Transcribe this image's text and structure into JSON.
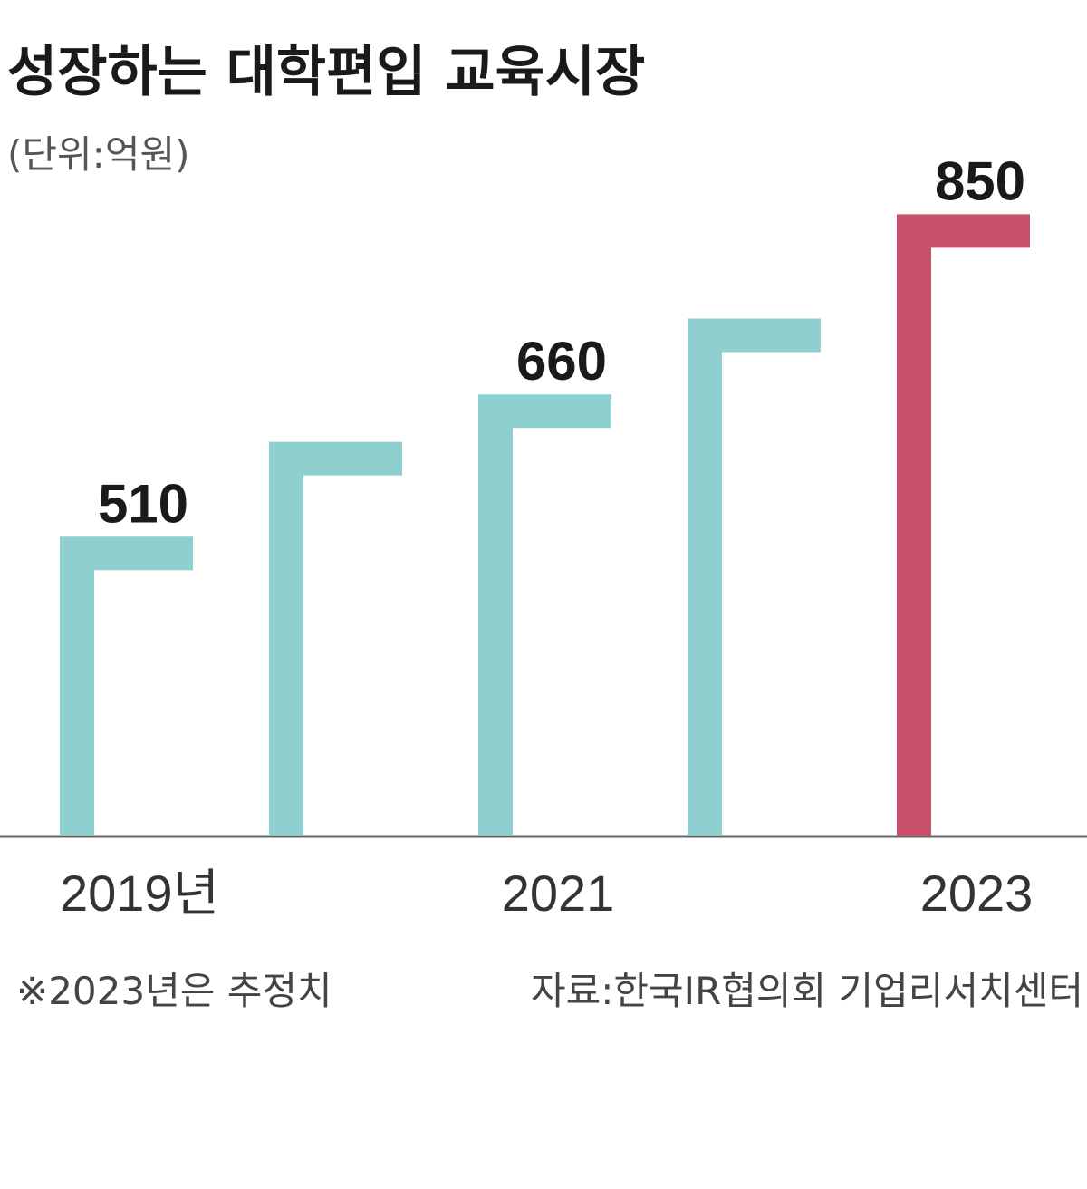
{
  "chart_data": {
    "type": "bar",
    "title": "성장하는 대학편입 교육시장",
    "subtitle": "(단위:억원)",
    "categories": [
      "2019년",
      null,
      "2021",
      null,
      "2023"
    ],
    "values": [
      510,
      610,
      660,
      740,
      850
    ],
    "value_labels": [
      "510",
      null,
      "660",
      null,
      "850"
    ],
    "colors": [
      "#8ecfd0",
      "#8ecfd0",
      "#8ecfd0",
      "#8ecfd0",
      "#c9506b"
    ],
    "ylim": [
      195,
      900
    ],
    "notes": [
      "※2023년은 추정치",
      "자료:한국IR협의회 기업리서치센터"
    ]
  }
}
